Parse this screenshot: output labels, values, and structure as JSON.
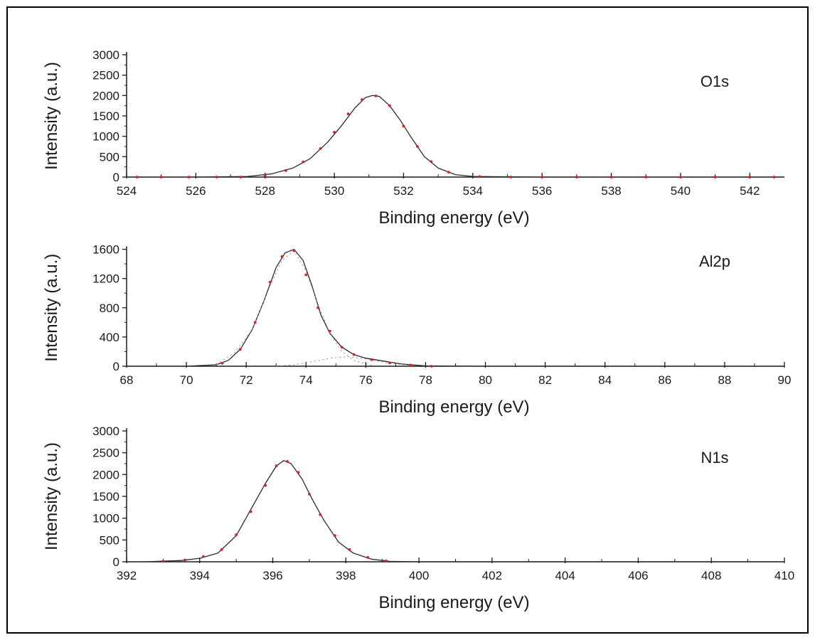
{
  "colors": {
    "axis": "#1a1a1a",
    "fit_line": "#2b2b2b",
    "data_points": "#d02030",
    "component": "#8a8a8a"
  },
  "chart_data": [
    {
      "type": "line",
      "label": "O1s",
      "xlabel": "Binding energy (eV)",
      "ylabel": "Intensity (a.u.)",
      "xlim": [
        524,
        543
      ],
      "ylim": [
        0,
        3000
      ],
      "xticks": [
        524,
        526,
        528,
        530,
        532,
        534,
        536,
        538,
        540,
        542
      ],
      "yticks": [
        0,
        500,
        1000,
        1500,
        2000,
        2500,
        3000
      ],
      "grid": false,
      "series": [
        {
          "kind": "fit",
          "x": [
            524,
            526,
            527.5,
            528.2,
            528.8,
            529.3,
            529.8,
            530.2,
            530.6,
            530.9,
            531.1,
            531.3,
            531.6,
            531.9,
            532.2,
            532.6,
            533.0,
            533.5,
            534,
            536,
            538,
            540,
            543
          ],
          "y": [
            0,
            0,
            15,
            80,
            220,
            450,
            850,
            1250,
            1700,
            1950,
            2000,
            1980,
            1750,
            1400,
            1000,
            500,
            220,
            60,
            15,
            0,
            0,
            0,
            0
          ]
        },
        {
          "kind": "data",
          "x": [
            524.3,
            525.0,
            525.8,
            526.6,
            527.3,
            528.0,
            528.6,
            529.1,
            529.6,
            530.0,
            530.4,
            530.8,
            531.2,
            531.6,
            532.0,
            532.4,
            532.8,
            533.3,
            534.2,
            535.1,
            536.0,
            537.0,
            538.0,
            539.0,
            540.0,
            541.0,
            542.0,
            542.7
          ],
          "y": [
            0,
            0,
            0,
            0,
            0,
            40,
            160,
            370,
            700,
            1100,
            1550,
            1900,
            1990,
            1750,
            1250,
            750,
            380,
            120,
            10,
            0,
            0,
            0,
            0,
            0,
            0,
            0,
            0,
            0
          ]
        }
      ]
    },
    {
      "type": "line",
      "label": "Al2p",
      "xlabel": "Binding energy (eV)",
      "ylabel": "Intensity (a.u.)",
      "xlim": [
        68,
        90
      ],
      "ylim": [
        0,
        1800
      ],
      "xticks": [
        68,
        70,
        72,
        74,
        76,
        78,
        80,
        82,
        84,
        86,
        88,
        90
      ],
      "yticks": [
        0,
        400,
        800,
        1200,
        1600
      ],
      "grid": false,
      "series": [
        {
          "kind": "fit",
          "x": [
            68,
            70,
            71.0,
            71.4,
            71.8,
            72.2,
            72.6,
            73.0,
            73.3,
            73.6,
            73.9,
            74.2,
            74.5,
            74.8,
            75.2,
            75.6,
            76.0,
            76.6,
            77.2,
            78,
            80,
            84,
            90
          ],
          "y": [
            0,
            0,
            20,
            80,
            230,
            500,
            900,
            1350,
            1550,
            1600,
            1450,
            1100,
            700,
            450,
            260,
            160,
            110,
            70,
            30,
            5,
            0,
            0,
            0
          ]
        },
        {
          "kind": "component",
          "x": [
            71.0,
            71.6,
            72.2,
            72.8,
            73.2,
            73.6,
            74.0,
            74.4,
            74.8,
            75.2,
            75.6,
            76.2
          ],
          "y": [
            20,
            180,
            500,
            1100,
            1450,
            1580,
            1300,
            850,
            450,
            200,
            80,
            10
          ]
        },
        {
          "kind": "component",
          "x": [
            73.0,
            73.6,
            74.2,
            74.8,
            75.4,
            76.0,
            76.8,
            77.6
          ],
          "y": [
            0,
            20,
            60,
            110,
            130,
            100,
            40,
            5
          ]
        },
        {
          "kind": "data",
          "x": [
            71.2,
            71.8,
            72.3,
            72.8,
            73.2,
            73.6,
            74.0,
            74.4,
            74.8,
            75.2,
            75.6,
            76.2,
            76.8,
            77.5,
            78.2
          ],
          "y": [
            40,
            230,
            600,
            1150,
            1500,
            1580,
            1250,
            800,
            480,
            260,
            160,
            90,
            45,
            15,
            0
          ]
        }
      ]
    },
    {
      "type": "line",
      "label": "N1s",
      "xlabel": "Binding energy (eV)",
      "ylabel": "Intensity (a.u.)",
      "xlim": [
        392,
        410
      ],
      "ylim": [
        0,
        3000
      ],
      "xticks": [
        392,
        394,
        396,
        398,
        400,
        402,
        404,
        406,
        408,
        410
      ],
      "yticks": [
        0,
        500,
        1000,
        1500,
        2000,
        2500,
        3000
      ],
      "grid": false,
      "series": [
        {
          "kind": "fit",
          "x": [
            392.5,
            393.5,
            394.0,
            394.5,
            395.0,
            395.4,
            395.8,
            396.1,
            396.3,
            396.5,
            396.8,
            397.1,
            397.4,
            397.8,
            398.2,
            398.7,
            399.2,
            400,
            404,
            410
          ],
          "y": [
            0,
            30,
            80,
            200,
            600,
            1200,
            1800,
            2200,
            2320,
            2250,
            1900,
            1400,
            950,
            450,
            200,
            60,
            10,
            0,
            0,
            0
          ]
        },
        {
          "kind": "data",
          "x": [
            393.0,
            393.6,
            394.1,
            394.6,
            395.0,
            395.4,
            395.8,
            396.1,
            396.4,
            396.7,
            397.0,
            397.3,
            397.7,
            398.1,
            398.6,
            399.1
          ],
          "y": [
            10,
            40,
            120,
            280,
            620,
            1150,
            1750,
            2200,
            2300,
            2050,
            1550,
            1080,
            600,
            280,
            100,
            20
          ]
        }
      ]
    }
  ]
}
